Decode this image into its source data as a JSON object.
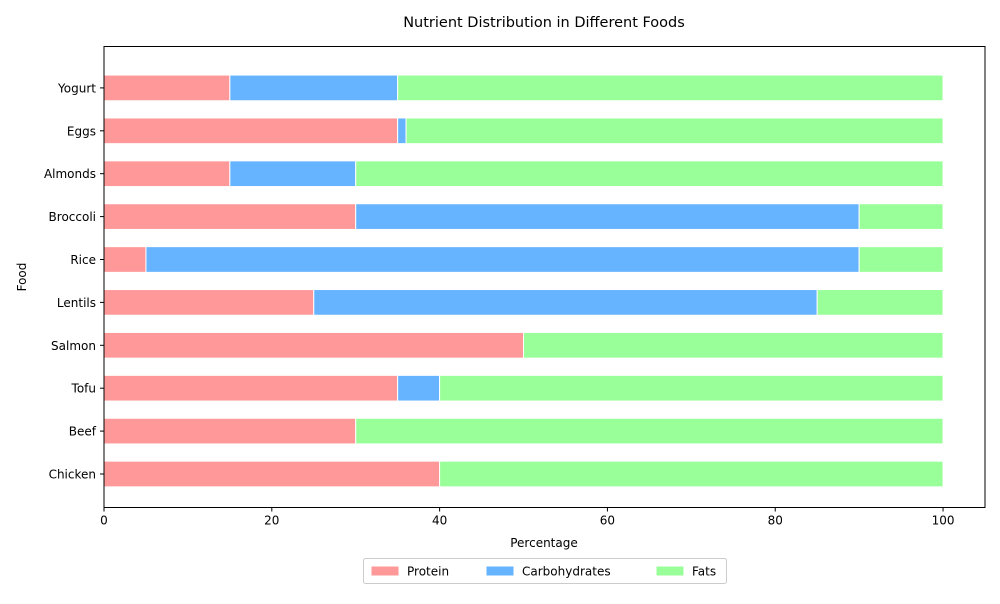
{
  "chart_data": {
    "type": "bar",
    "orientation": "horizontal",
    "stacked": true,
    "title": "Nutrient Distribution in Different Foods",
    "xlabel": "Percentage",
    "ylabel": "Food",
    "xlim": [
      0,
      105
    ],
    "xticks": [
      0,
      20,
      40,
      60,
      80,
      100
    ],
    "grid": false,
    "legend_position": "bottom-center",
    "categories": [
      "Chicken",
      "Beef",
      "Tofu",
      "Salmon",
      "Lentils",
      "Rice",
      "Broccoli",
      "Almonds",
      "Eggs",
      "Yogurt"
    ],
    "series": [
      {
        "name": "Protein",
        "color": "#ff9999",
        "values": [
          40,
          30,
          35,
          50,
          25,
          5,
          30,
          15,
          35,
          15
        ]
      },
      {
        "name": "Carbohydrates",
        "color": "#66b3ff",
        "values": [
          0,
          0,
          5,
          0,
          60,
          85,
          60,
          15,
          1,
          20
        ]
      },
      {
        "name": "Fats",
        "color": "#99ff99",
        "values": [
          60,
          70,
          60,
          50,
          15,
          10,
          10,
          70,
          64,
          65
        ]
      }
    ]
  }
}
